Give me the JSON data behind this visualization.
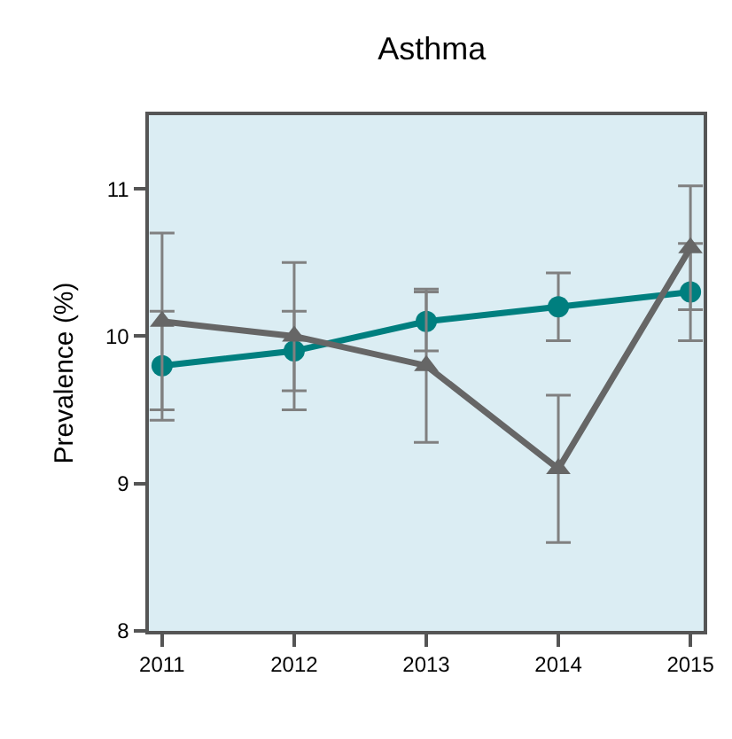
{
  "chart_data": {
    "type": "line",
    "title": "Asthma",
    "ylabel": "Prevalence (%)",
    "x": [
      2011,
      2012,
      2013,
      2014,
      2015
    ],
    "series": [
      {
        "color": "#007f7f",
        "marker": "circle",
        "values": [
          9.8,
          9.9,
          10.1,
          10.2,
          10.3
        ],
        "errors": [
          0.37,
          0.27,
          0.2,
          0.23,
          0.33
        ]
      },
      {
        "color": "#666666",
        "marker": "triangle",
        "values": [
          10.1,
          10.0,
          9.8,
          9.1,
          10.6
        ],
        "errors": [
          0.6,
          0.5,
          0.52,
          0.5,
          0.42
        ]
      }
    ],
    "xlim": [
      2010.9,
      2015.1
    ],
    "xticks": [
      2011,
      2012,
      2013,
      2014,
      2015
    ],
    "ylim": [
      8,
      11.5
    ],
    "yticks": [
      8,
      9,
      10,
      11
    ],
    "grid": false
  }
}
